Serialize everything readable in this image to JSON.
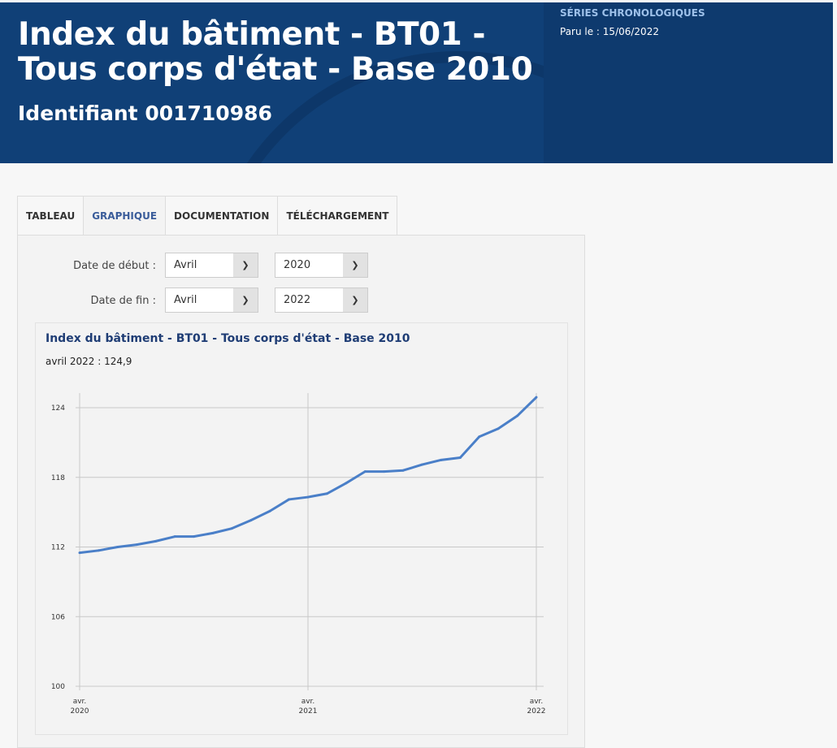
{
  "header": {
    "title": "Index du bâtiment - BT01 - Tous corps d'état - Base 2010",
    "identifier": "Identifiant 001710986",
    "category": "SÉRIES CHRONOLOGIQUES",
    "published": "Paru le : 15/06/2022"
  },
  "tabs": [
    {
      "label": "TABLEAU"
    },
    {
      "label": "GRAPHIQUE",
      "active": true
    },
    {
      "label": "DOCUMENTATION"
    },
    {
      "label": "TÉLÉCHARGEMENT"
    }
  ],
  "filters": {
    "start_label": "Date de début :",
    "start_month": "Avril",
    "start_year": "2020",
    "end_label": "Date de fin :",
    "end_month": "Avril",
    "end_year": "2022"
  },
  "chart_data": {
    "type": "line",
    "title": "Index du bâtiment - BT01 - Tous corps d'état - Base 2010",
    "annotation": "avril 2022 : 124,9",
    "ylim": [
      100,
      125
    ],
    "yticks": [
      "100",
      "106",
      "112",
      "118",
      "124"
    ],
    "xticks": [
      {
        "month": "avr.",
        "year": "2020"
      },
      {
        "month": "avr.",
        "year": "2021"
      },
      {
        "month": "avr.",
        "year": "2022"
      }
    ],
    "grid": true,
    "color": "#4a7fc8",
    "x": [
      "2020-04",
      "2020-05",
      "2020-06",
      "2020-07",
      "2020-08",
      "2020-09",
      "2020-10",
      "2020-11",
      "2020-12",
      "2021-01",
      "2021-02",
      "2021-03",
      "2021-04",
      "2021-05",
      "2021-06",
      "2021-07",
      "2021-08",
      "2021-09",
      "2021-10",
      "2021-11",
      "2021-12",
      "2022-01",
      "2022-02",
      "2022-03",
      "2022-04"
    ],
    "values": [
      111.5,
      111.7,
      112.0,
      112.2,
      112.5,
      112.9,
      112.9,
      113.2,
      113.6,
      114.3,
      115.1,
      116.1,
      116.3,
      116.6,
      117.5,
      118.5,
      118.5,
      118.6,
      119.1,
      119.5,
      119.7,
      121.5,
      122.2,
      123.3,
      124.9
    ]
  }
}
